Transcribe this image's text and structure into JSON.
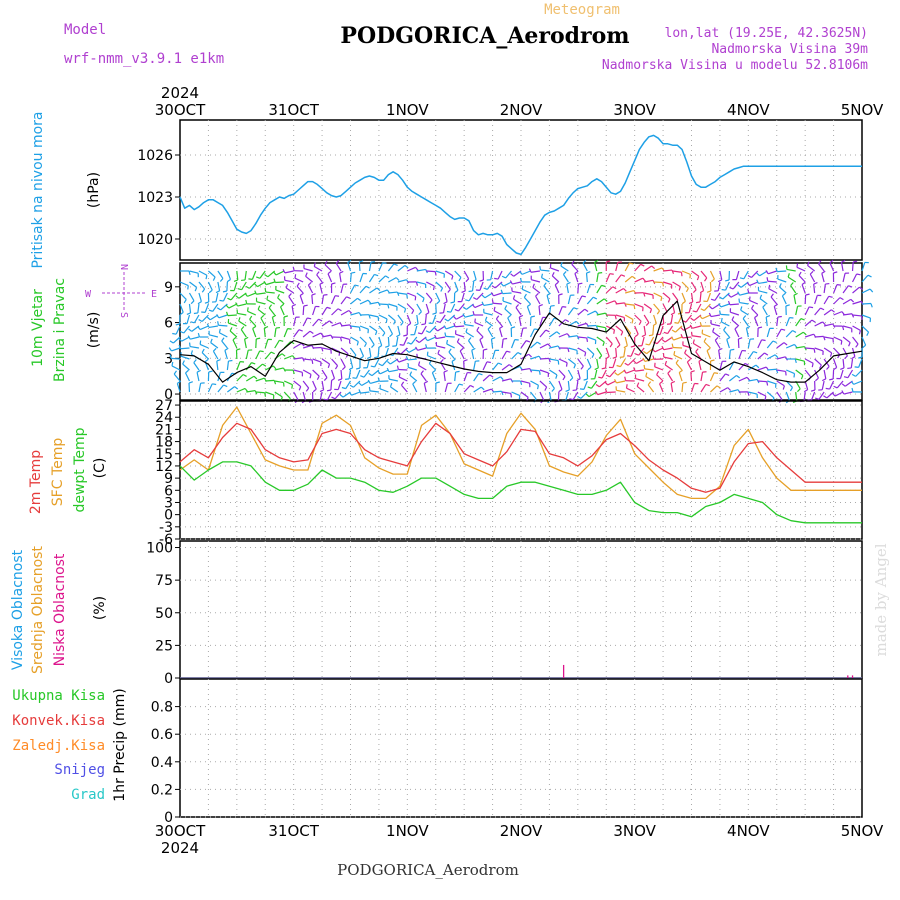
{
  "header": {
    "model_label": "Model",
    "model_name": "wrf-nmm_v3.9.1 e1km",
    "product": "Meteogram",
    "station": "PODGORICA_Aerodrom",
    "lonlat": "lon,lat (19.25E, 42.3625N)",
    "elevation": "Nadmorska Visina 39m",
    "model_elevation": "Nadmorska Visina u modelu 52.8106m",
    "watermark": "made by Angel",
    "footer_station": "PODGORICA_Aerodrom"
  },
  "colors": {
    "pressure": "#1ea0e6",
    "t2m": "#e63c3c",
    "sfc": "#e6a028",
    "dewpt": "#28c828",
    "high_cloud": "#1ea0e6",
    "mid_cloud": "#e6a028",
    "low_cloud": "#dc148c",
    "purple_label": "#b040d0",
    "meteogram": "#f0c070"
  },
  "chart_data": [
    {
      "type": "line",
      "panel": "pressure",
      "x_ticks": [
        "30OCT",
        "31OCT",
        "1NOV",
        "2NOV",
        "3NOV",
        "4NOV",
        "5NOV"
      ],
      "year": "2024",
      "ylabel": "(hPa)",
      "series_label": "Pritisak na nivou mora",
      "ylim": [
        1018.5,
        1028.5
      ],
      "yticks": [
        1020,
        1023,
        1026
      ],
      "grid": true,
      "series": [
        {
          "name": "Pritisak na nivou mora",
          "x": [
            0,
            1,
            2,
            3,
            4,
            5,
            6,
            7,
            8,
            9,
            10,
            11,
            12,
            13,
            14,
            15,
            16,
            17,
            18,
            19,
            20,
            21,
            22,
            23,
            24,
            25,
            26,
            27,
            28,
            29,
            30,
            31,
            32,
            33,
            34,
            35,
            36,
            37,
            38,
            39,
            40,
            41,
            42,
            43,
            44,
            45,
            46,
            47,
            48,
            49,
            50,
            51,
            52,
            53,
            54,
            55,
            56,
            57,
            58,
            59,
            60,
            61,
            62,
            63,
            64,
            65,
            66,
            67,
            68,
            69,
            70,
            71,
            72,
            73,
            74,
            75,
            76,
            77,
            78,
            79,
            80,
            81,
            82,
            83,
            84,
            85,
            86,
            87,
            88,
            89,
            90,
            91,
            92,
            93,
            94,
            95,
            96,
            97,
            98,
            99,
            100,
            101,
            102,
            103,
            104,
            105,
            106,
            107,
            108,
            109,
            110,
            111,
            112,
            113,
            114,
            115,
            116,
            117,
            118,
            119,
            120,
            121,
            122,
            123,
            124,
            125,
            126,
            127,
            128,
            129,
            130,
            131,
            132,
            133,
            134,
            135,
            136,
            137,
            138,
            139,
            140,
            141,
            142,
            143,
            144
          ],
          "values": [
            1023.0,
            1022.2,
            1022.4,
            1022.1,
            1022.3,
            1022.6,
            1022.8,
            1022.8,
            1022.6,
            1022.4,
            1021.9,
            1021.3,
            1020.7,
            1020.5,
            1020.4,
            1020.6,
            1021.1,
            1021.7,
            1022.2,
            1022.6,
            1022.8,
            1023.0,
            1022.9,
            1023.1,
            1023.2,
            1023.5,
            1023.8,
            1024.1,
            1024.1,
            1023.9,
            1023.6,
            1023.3,
            1023.1,
            1023.0,
            1023.1,
            1023.4,
            1023.7,
            1024.0,
            1024.2,
            1024.4,
            1024.5,
            1024.4,
            1024.2,
            1024.2,
            1024.6,
            1024.8,
            1024.6,
            1024.2,
            1023.7,
            1023.4,
            1023.2,
            1023.0,
            1022.8,
            1022.6,
            1022.4,
            1022.2,
            1021.9,
            1021.6,
            1021.4,
            1021.5,
            1021.5,
            1021.3,
            1020.6,
            1020.3,
            1020.4,
            1020.3,
            1020.3,
            1020.4,
            1020.2,
            1019.6,
            1019.3,
            1019.0,
            1018.9,
            1019.4,
            1020.0,
            1020.6,
            1021.2,
            1021.7,
            1021.9,
            1022.0,
            1022.2,
            1022.4,
            1022.9,
            1023.3,
            1023.6,
            1023.7,
            1023.8,
            1024.1,
            1024.3,
            1024.1,
            1023.7,
            1023.3,
            1023.2,
            1023.4,
            1024.0,
            1024.8,
            1025.6,
            1026.4,
            1026.9,
            1027.3,
            1027.4,
            1027.2,
            1026.8,
            1026.8,
            1026.7,
            1026.7,
            1026.4,
            1025.5,
            1024.5,
            1023.9,
            1023.7,
            1023.7,
            1023.9,
            1024.1,
            1024.4,
            1024.6,
            1024.8,
            1025.0,
            1025.1,
            1025.2,
            1025.2,
            1025.2,
            1025.2,
            1025.2,
            1025.2,
            1025.2,
            1025.2,
            1025.2,
            1025.2,
            1025.2,
            1025.2,
            1025.2,
            1025.2,
            1025.2,
            1025.2,
            1025.2,
            1025.2,
            1025.2,
            1025.2,
            1025.2,
            1025.2,
            1025.2,
            1025.2,
            1025.2,
            1025.2
          ]
        }
      ]
    },
    {
      "type": "line",
      "panel": "wind",
      "ylabel": "(m/s)",
      "series_labels": [
        "10m Vjetar",
        "Brzina i Pravac"
      ],
      "compass": {
        "n": "N",
        "s": "S",
        "e": "E",
        "w": "W"
      },
      "ylim": [
        -0.5,
        11
      ],
      "yticks": [
        0,
        3,
        6,
        9
      ],
      "grid": true,
      "wind_colors": [
        "#1ea0e6",
        "#28c828",
        "#8c28dc",
        "#e6a028",
        "#e62878",
        "#c8c828"
      ],
      "series": [
        {
          "name": "Brzina",
          "x": [
            0,
            3,
            6,
            9,
            12,
            15,
            18,
            21,
            24,
            27,
            30,
            33,
            36,
            39,
            42,
            45,
            48,
            51,
            54,
            57,
            60,
            63,
            66,
            69,
            72,
            75,
            78,
            81,
            84,
            87,
            90,
            93,
            96,
            99,
            102,
            105,
            108,
            111,
            114,
            117,
            120,
            123,
            126,
            129,
            132,
            135,
            138,
            141,
            144
          ],
          "values": [
            3.3,
            3.2,
            2.5,
            1.0,
            1.8,
            2.3,
            1.5,
            3.5,
            4.5,
            4.1,
            4.2,
            3.6,
            3.2,
            2.8,
            3.0,
            3.4,
            3.3,
            3.0,
            2.7,
            2.4,
            2.1,
            1.9,
            1.8,
            1.8,
            2.5,
            5.0,
            6.8,
            5.9,
            5.6,
            5.5,
            5.2,
            6.3,
            4.2,
            2.8,
            6.6,
            7.8,
            3.4,
            2.7,
            2.0,
            2.7,
            2.3,
            1.8,
            1.2,
            1.0,
            1.0,
            2.0,
            3.2,
            3.4,
            3.6
          ]
        }
      ]
    },
    {
      "type": "line",
      "panel": "temperature",
      "ylabel": "(C)",
      "ylim": [
        -6,
        28
      ],
      "yticks": [
        -6,
        -3,
        0,
        3,
        6,
        9,
        12,
        15,
        18,
        21,
        24,
        27
      ],
      "grid": true,
      "series": [
        {
          "name": "2m Temp",
          "x": [
            0,
            3,
            6,
            9,
            12,
            15,
            18,
            21,
            24,
            27,
            30,
            33,
            36,
            39,
            42,
            45,
            48,
            51,
            54,
            57,
            60,
            63,
            66,
            69,
            72,
            75,
            78,
            81,
            84,
            87,
            90,
            93,
            96,
            99,
            102,
            105,
            108,
            111,
            114,
            117,
            120,
            123,
            126,
            129,
            132,
            135,
            138,
            141,
            144
          ],
          "values": [
            13,
            16,
            14,
            19,
            22.5,
            21,
            16,
            14,
            13,
            13.5,
            20,
            21,
            20,
            16,
            14,
            13,
            12,
            18,
            22.5,
            20,
            15,
            13.5,
            12,
            15.5,
            21,
            20.5,
            15,
            14,
            12,
            14.5,
            18.5,
            20,
            17,
            13.5,
            11,
            9,
            6.5,
            5.5,
            6.5,
            13,
            17.5,
            18,
            14,
            11,
            8,
            8,
            8,
            8,
            8
          ]
        },
        {
          "name": "SFC Temp",
          "x": [
            0,
            3,
            6,
            9,
            12,
            15,
            18,
            21,
            24,
            27,
            30,
            33,
            36,
            39,
            42,
            45,
            48,
            51,
            54,
            57,
            60,
            63,
            66,
            69,
            72,
            75,
            78,
            81,
            84,
            87,
            90,
            93,
            96,
            99,
            102,
            105,
            108,
            111,
            114,
            117,
            120,
            123,
            126,
            129,
            132,
            135,
            138,
            141,
            144
          ],
          "values": [
            11,
            13.5,
            11,
            22,
            26.5,
            20,
            13.5,
            12,
            11,
            11,
            22.5,
            24.5,
            22,
            14,
            11.5,
            10,
            10,
            22,
            24.5,
            20,
            12.5,
            11,
            9.5,
            20,
            25,
            21,
            12,
            10.5,
            9.5,
            13,
            19.5,
            23.5,
            15,
            11.5,
            8,
            5,
            4,
            4,
            7,
            17,
            21,
            14,
            9,
            6,
            6,
            6,
            6,
            6,
            6
          ]
        },
        {
          "name": "dewpt Temp",
          "x": [
            0,
            3,
            6,
            9,
            12,
            15,
            18,
            21,
            24,
            27,
            30,
            33,
            36,
            39,
            42,
            45,
            48,
            51,
            54,
            57,
            60,
            63,
            66,
            69,
            72,
            75,
            78,
            81,
            84,
            87,
            90,
            93,
            96,
            99,
            102,
            105,
            108,
            111,
            114,
            117,
            120,
            123,
            126,
            129,
            132,
            135,
            138,
            141,
            144
          ],
          "values": [
            12,
            8.5,
            11,
            13,
            13,
            12,
            8,
            6,
            6,
            7.5,
            11,
            9,
            9,
            8,
            6,
            5.5,
            7,
            9,
            9,
            7,
            5,
            4,
            4,
            7,
            8,
            8,
            7,
            6,
            5,
            5,
            6,
            8,
            3,
            1,
            0.5,
            0.5,
            -0.5,
            2,
            3,
            5,
            4,
            3,
            0,
            -1.5,
            -2,
            -2,
            -2,
            -2,
            -2
          ]
        }
      ]
    },
    {
      "type": "bar",
      "panel": "cloud",
      "ylabel": "(%)",
      "ylim": [
        0,
        105
      ],
      "yticks": [
        0,
        25,
        50,
        75,
        100
      ],
      "grid": true,
      "series": [
        {
          "name": "Visoka Oblacnost",
          "x": [],
          "values": []
        },
        {
          "name": "Srednja Oblacnost",
          "x": [],
          "values": []
        },
        {
          "name": "Niska Oblacnost",
          "x": [
            81,
            141,
            142
          ],
          "values": [
            10,
            2,
            2
          ]
        }
      ]
    },
    {
      "type": "bar",
      "panel": "precip",
      "ylabel": "1hr Precip (mm)",
      "ylim": [
        0,
        1.0
      ],
      "yticks": [
        0,
        0.2,
        0.4,
        0.6,
        0.8
      ],
      "grid": true,
      "series": [
        {
          "name": "Ukupna Kisa",
          "x": [],
          "values": []
        },
        {
          "name": "Konvek.Kisa",
          "x": [],
          "values": []
        },
        {
          "name": "Zaledj.Kisa",
          "x": [],
          "values": []
        },
        {
          "name": "Snijeg",
          "x": [],
          "values": []
        },
        {
          "name": "Grad",
          "x": [],
          "values": []
        }
      ]
    }
  ]
}
